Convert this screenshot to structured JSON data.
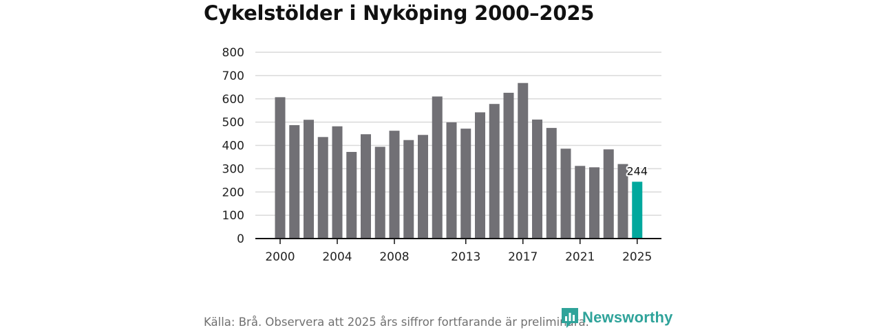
{
  "title": "Cykelstölder i Nyköping 2000–2025",
  "source": "Källa: Brå. Observera att 2025 års siffror fortfarande är preliminära.",
  "logo": {
    "text": "Newsworthy",
    "icon": "newsworthy-logo-icon"
  },
  "colors": {
    "bar": "#717075",
    "highlight": "#00a89d",
    "grid": "#d9d9d9",
    "axis": "#111111",
    "logo": "#2fa39a"
  },
  "chart_data": {
    "type": "bar",
    "title": "Cykelstölder i Nyköping 2000–2025",
    "xlabel": "",
    "ylabel": "",
    "categories": [
      "2000",
      "2001",
      "2002",
      "2003",
      "2004",
      "2005",
      "2006",
      "2007",
      "2008",
      "2009",
      "2010",
      "2011",
      "2012",
      "2013",
      "2014",
      "2015",
      "2016",
      "2017",
      "2018",
      "2019",
      "2020",
      "2021",
      "2022",
      "2023",
      "2024",
      "2025"
    ],
    "values": [
      607,
      487,
      510,
      436,
      482,
      372,
      448,
      394,
      463,
      423,
      445,
      610,
      499,
      472,
      542,
      578,
      626,
      668,
      511,
      475,
      386,
      312,
      306,
      383,
      320,
      244
    ],
    "highlight_index": 25,
    "data_labels": [
      {
        "index": 25,
        "text": "244"
      }
    ],
    "ylim": [
      0,
      800
    ],
    "yticks": [
      "0",
      "100",
      "200",
      "300",
      "400",
      "500",
      "600",
      "700",
      "800"
    ],
    "xticks": [
      {
        "index": 0,
        "label": "2000"
      },
      {
        "index": 4,
        "label": "2004"
      },
      {
        "index": 8,
        "label": "2008"
      },
      {
        "index": 13,
        "label": "2013"
      },
      {
        "index": 17,
        "label": "2017"
      },
      {
        "index": 21,
        "label": "2021"
      },
      {
        "index": 25,
        "label": "2025"
      }
    ],
    "grid": true
  }
}
